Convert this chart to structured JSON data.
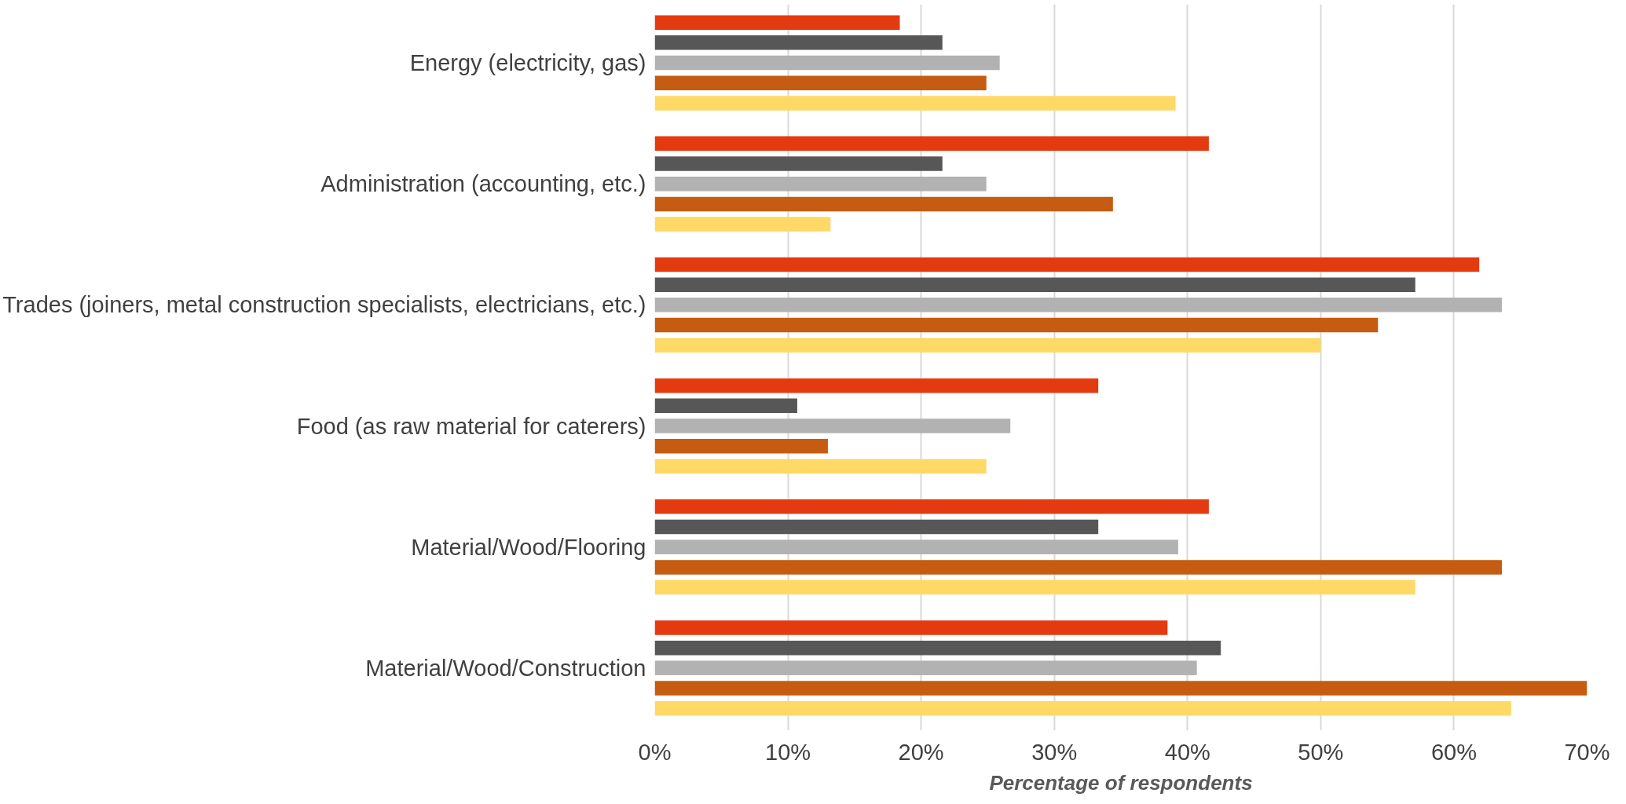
{
  "chart_data": {
    "type": "bar",
    "orientation": "horizontal",
    "xlabel": "Percentage of respondents",
    "categories": [
      "Energy (electricity, gas)",
      "Administration (accounting, etc.)",
      "Trades (joiners, metal construction specialists, electricians, etc.)",
      "Food (as raw material for caterers)",
      "Material/Wood/Flooring",
      "Material/Wood/Construction"
    ],
    "series": [
      {
        "color": "#e43a10",
        "values": [
          18.4,
          41.6,
          61.9,
          33.3,
          41.6,
          38.5
        ]
      },
      {
        "color": "#575757",
        "values": [
          21.6,
          21.6,
          57.1,
          10.7,
          33.3,
          42.5
        ]
      },
      {
        "color": "#b2b2b2",
        "values": [
          25.9,
          24.9,
          63.6,
          26.7,
          39.3,
          40.7
        ]
      },
      {
        "color": "#c55c12",
        "values": [
          24.9,
          34.4,
          54.3,
          13.0,
          63.6,
          70.0
        ]
      },
      {
        "color": "#fed966",
        "values": [
          39.1,
          13.2,
          50.0,
          24.9,
          57.1,
          64.3
        ]
      }
    ],
    "xlim": [
      0,
      70
    ],
    "xticks": [
      {
        "value": 0,
        "label": "0%"
      },
      {
        "value": 10,
        "label": "10%"
      },
      {
        "value": 20,
        "label": "20%"
      },
      {
        "value": 30,
        "label": "30%"
      },
      {
        "value": 40,
        "label": "40%"
      },
      {
        "value": 50,
        "label": "50%"
      },
      {
        "value": 60,
        "label": "60%"
      },
      {
        "value": 70,
        "label": "70%"
      }
    ],
    "grid": "x"
  }
}
